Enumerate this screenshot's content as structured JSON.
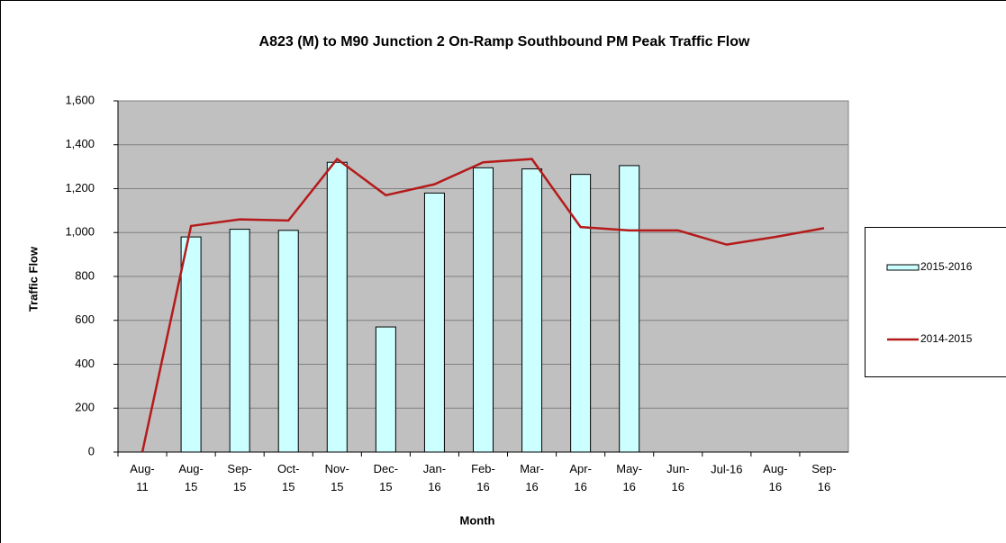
{
  "chart_data": {
    "type": "bar-line",
    "title": "A823 (M) to M90 Junction 2 On-Ramp Southbound PM Peak Traffic Flow",
    "x_label": "Month",
    "y_label": "Traffic Flow",
    "categories": [
      "Aug-11",
      "Aug-15",
      "Sep-15",
      "Oct-15",
      "Nov-15",
      "Dec-15",
      "Jan-16",
      "Feb-16",
      "Mar-16",
      "Apr-16",
      "May-16",
      "Jun-16",
      "Jul-16",
      "Aug-16",
      "Sep-16"
    ],
    "series": [
      {
        "name": "2015-2016",
        "type": "bar",
        "color": "#ccffff",
        "values": [
          null,
          980,
          1015,
          1010,
          1320,
          570,
          1180,
          1295,
          1290,
          1265,
          1305,
          null,
          null,
          null,
          null
        ]
      },
      {
        "name": "2014-2015",
        "type": "line",
        "color": "#b51a1a",
        "values": [
          0,
          1030,
          1060,
          1055,
          1335,
          1170,
          1220,
          1320,
          1335,
          1025,
          1010,
          1010,
          945,
          980,
          1020
        ]
      }
    ],
    "ylim": [
      0,
      1600
    ],
    "yticks": [
      0,
      200,
      400,
      600,
      800,
      {
        "value": 1000,
        "label": "1,000"
      },
      {
        "value": 1200,
        "label": "1,200"
      },
      {
        "value": 1400,
        "label": "1,400"
      },
      {
        "value": 1600,
        "label": "1,600"
      }
    ],
    "grid": true,
    "legend": "right"
  }
}
